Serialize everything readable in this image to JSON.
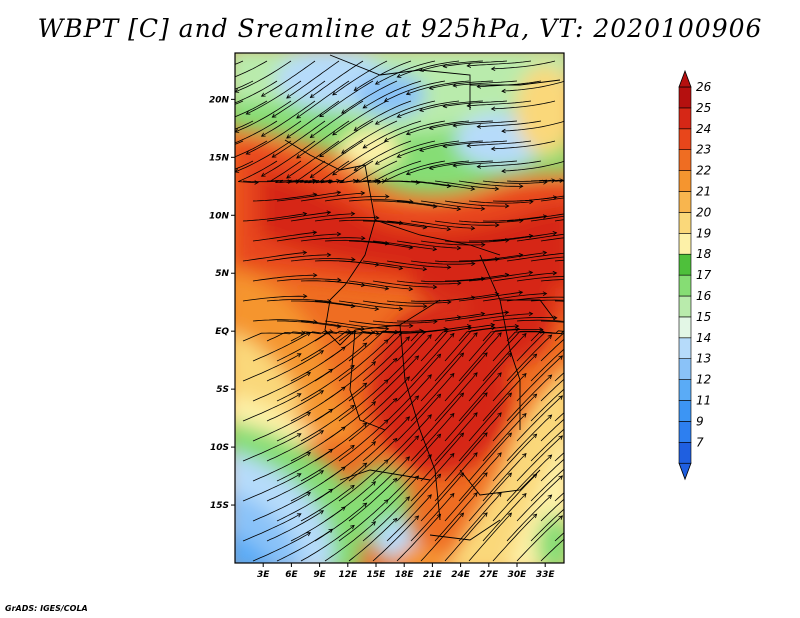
{
  "title": "WBPT [C] and Sreamline at 925hPa, VT: 2020100906",
  "credit": "GrADS: IGES/COLA",
  "chart_data": {
    "type": "heatmap",
    "variable": "Wet Bulb Potential Temperature",
    "units": "C",
    "level": "925hPa",
    "valid_time": "2020100906",
    "overlay": "streamlines",
    "lon_range": [
      0,
      35
    ],
    "lat_range": [
      -20,
      24
    ],
    "lon_ticks": [
      "3E",
      "6E",
      "9E",
      "12E",
      "15E",
      "18E",
      "21E",
      "24E",
      "27E",
      "30E",
      "33E"
    ],
    "lon_tick_values": [
      3,
      6,
      9,
      12,
      15,
      18,
      21,
      24,
      27,
      30,
      33
    ],
    "lat_ticks": [
      "20N",
      "15N",
      "10N",
      "5N",
      "EQ",
      "5S",
      "10S",
      "15S"
    ],
    "lat_tick_values": [
      20,
      15,
      10,
      5,
      0,
      -5,
      -10,
      -15
    ],
    "colorbar": {
      "labels": [
        "7",
        "9",
        "11",
        "12",
        "13",
        "14",
        "15",
        "16",
        "17",
        "18",
        "19",
        "20",
        "21",
        "22",
        "23",
        "24",
        "25",
        "26"
      ],
      "colors": [
        "#1f5fe0",
        "#2d7ff0",
        "#3c95f4",
        "#5aabf6",
        "#8ac2f8",
        "#b6dbfa",
        "#e3f7e6",
        "#b9ebac",
        "#86dd74",
        "#4ec03b",
        "#fdf1a8",
        "#fad87a",
        "#f8b54e",
        "#f5952f",
        "#ef6d22",
        "#e8461b",
        "#d62716",
        "#b5100f"
      ],
      "extends": "both"
    }
  }
}
